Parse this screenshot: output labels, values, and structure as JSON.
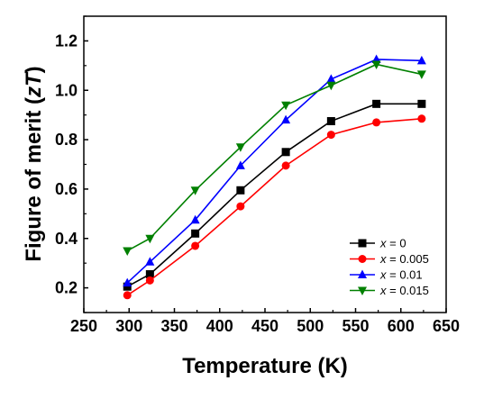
{
  "chart_data": {
    "type": "line",
    "title": "",
    "xlabel": "Temperature (K)",
    "ylabel_main": "Figure of merit (",
    "ylabel_var": "zT",
    "ylabel_end": ")",
    "xlim": [
      250,
      650
    ],
    "ylim": [
      0.1,
      1.3
    ],
    "xticks": [
      250,
      300,
      350,
      400,
      450,
      500,
      550,
      600,
      650
    ],
    "yticks": [
      0.2,
      0.4,
      0.6,
      0.8,
      1.0,
      1.2
    ],
    "ytick_labels": [
      "0.2",
      "0.4",
      "0.6",
      "0.8",
      "1.0",
      "1.2"
    ],
    "grid": false,
    "legend_position": "bottom-right",
    "x": [
      298,
      323,
      373,
      423,
      473,
      523,
      573,
      623
    ],
    "series": [
      {
        "name_var": "x",
        "name_val": " = 0",
        "color": "#000000",
        "marker": "square",
        "values": [
          0.205,
          0.255,
          0.42,
          0.595,
          0.75,
          0.875,
          0.945,
          0.945
        ]
      },
      {
        "name_var": "x",
        "name_val": " = 0.005",
        "color": "#ff0000",
        "marker": "circle",
        "values": [
          0.17,
          0.23,
          0.37,
          0.53,
          0.695,
          0.82,
          0.87,
          0.885
        ]
      },
      {
        "name_var": "x",
        "name_val": " = 0.01",
        "color": "#0000ff",
        "marker": "triangle-up",
        "values": [
          0.22,
          0.305,
          0.475,
          0.695,
          0.88,
          1.045,
          1.125,
          1.12
        ]
      },
      {
        "name_var": "x",
        "name_val": " = 0.015",
        "color": "#008000",
        "marker": "triangle-down",
        "values": [
          0.35,
          0.4,
          0.595,
          0.77,
          0.94,
          1.02,
          1.105,
          1.065
        ]
      }
    ]
  }
}
